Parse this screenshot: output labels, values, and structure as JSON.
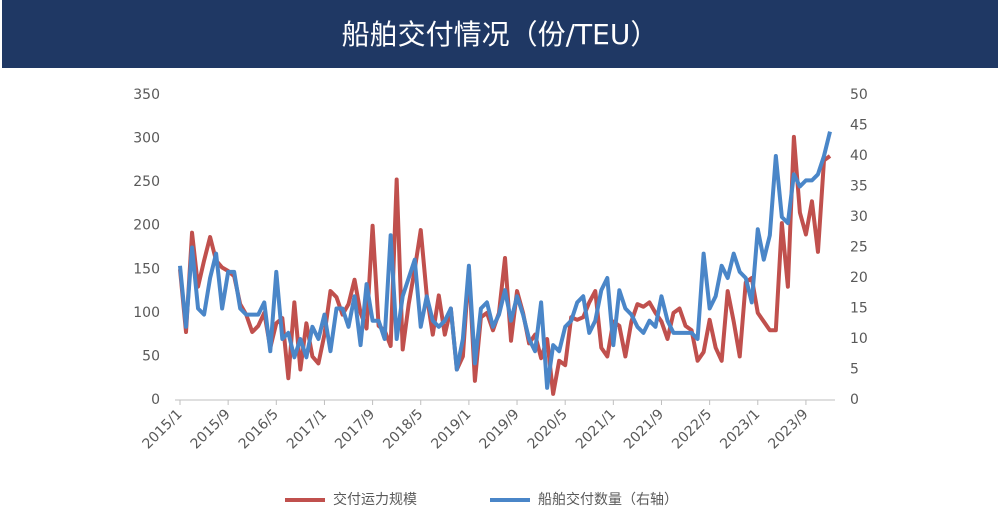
{
  "chart_data": {
    "type": "line",
    "title": "船舶交付情况（份/TEU）",
    "categories": [
      "2015/1",
      null,
      null,
      null,
      null,
      null,
      null,
      null,
      "2015/9",
      null,
      null,
      null,
      null,
      null,
      null,
      null,
      "2016/5",
      null,
      null,
      null,
      null,
      null,
      null,
      null,
      "2017/1",
      null,
      null,
      null,
      null,
      null,
      null,
      null,
      "2017/9",
      null,
      null,
      null,
      null,
      null,
      null,
      null,
      "2018/5",
      null,
      null,
      null,
      null,
      null,
      null,
      null,
      "2019/1",
      null,
      null,
      null,
      null,
      null,
      null,
      null,
      "2019/9",
      null,
      null,
      null,
      null,
      null,
      null,
      null,
      "2020/5",
      null,
      null,
      null,
      null,
      null,
      null,
      null,
      "2021/1",
      null,
      null,
      null,
      null,
      null,
      null,
      null,
      "2021/9",
      null,
      null,
      null,
      null,
      null,
      null,
      null,
      "2022/5",
      null,
      null,
      null,
      null,
      null,
      null,
      null,
      "2023/1",
      null,
      null,
      null,
      null,
      null,
      null,
      null,
      "2023/9",
      null,
      null,
      null,
      null
    ],
    "series": [
      {
        "name": "交付运力规模",
        "color": "#c0504d",
        "values": [
          150,
          78,
          192,
          130,
          160,
          187,
          160,
          152,
          148,
          142,
          110,
          98,
          78,
          85,
          100,
          60,
          88,
          94,
          25,
          112,
          35,
          88,
          50,
          42,
          75,
          125,
          118,
          98,
          110,
          138,
          100,
          82,
          200,
          85,
          80,
          62,
          253,
          58,
          110,
          150,
          195,
          120,
          75,
          120,
          75,
          105,
          35,
          50,
          150,
          22,
          95,
          100,
          80,
          100,
          163,
          68,
          125,
          100,
          65,
          75,
          48,
          70,
          7,
          45,
          40,
          95,
          92,
          95,
          112,
          125,
          60,
          50,
          90,
          85,
          50,
          90,
          110,
          107,
          112,
          100,
          90,
          70,
          100,
          105,
          85,
          80,
          45,
          55,
          92,
          60,
          45,
          125,
          90,
          50,
          135,
          140,
          100,
          90,
          80,
          80,
          203,
          130,
          302,
          215,
          190,
          228,
          170,
          275,
          280
        ]
      },
      {
        "name": "船舶交付数量（右轴）",
        "color": "#4a86c8",
        "axis": "y2",
        "values": [
          22,
          12,
          25,
          15,
          14,
          20,
          24,
          15,
          21,
          21,
          15,
          14,
          14,
          14,
          16,
          8,
          21,
          10,
          11,
          7,
          10,
          7,
          12,
          10,
          14,
          8,
          15,
          15,
          12,
          17,
          9,
          19,
          13,
          13,
          10,
          27,
          10,
          17,
          20,
          23,
          12,
          17,
          13,
          12,
          13,
          15,
          5,
          10,
          22,
          6,
          15,
          16,
          12,
          14,
          18,
          13,
          17,
          14,
          10,
          8,
          16,
          2,
          9,
          8,
          12,
          13,
          16,
          17,
          11,
          13,
          18,
          20,
          9,
          18,
          15,
          14,
          12,
          11,
          13,
          12,
          17,
          13,
          11,
          11,
          11,
          11,
          10,
          24,
          15,
          17,
          22,
          20,
          24,
          21,
          20,
          16,
          28,
          23,
          27,
          40,
          30,
          29,
          37,
          35,
          36,
          36,
          37,
          40,
          44
        ]
      }
    ],
    "ylim": [
      0,
      350
    ],
    "yticks": [
      0,
      50,
      100,
      150,
      200,
      250,
      300,
      350
    ],
    "y2lim": [
      0,
      50
    ],
    "y2ticks": [
      0,
      5,
      10,
      15,
      20,
      25,
      30,
      35,
      40,
      45,
      50
    ],
    "grid": false,
    "legend": "bottom"
  }
}
